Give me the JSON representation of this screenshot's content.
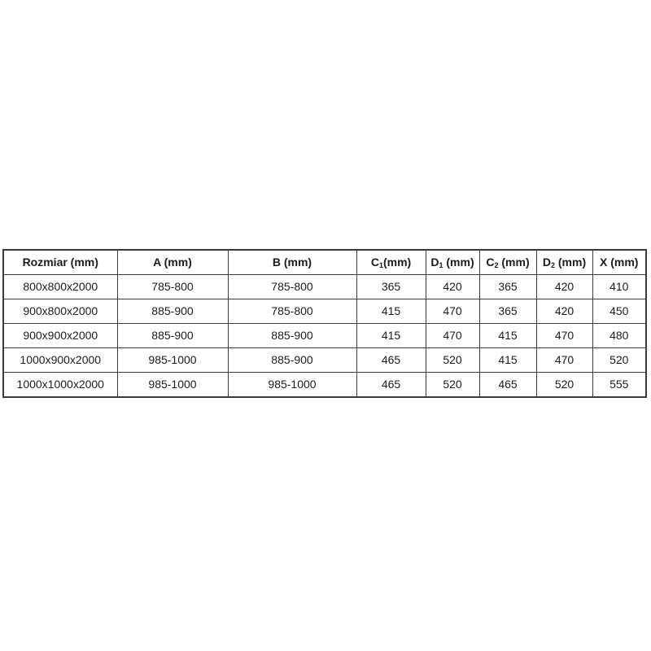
{
  "page": {
    "background_color": "#ffffff"
  },
  "table": {
    "border_color": "#3a3a3a",
    "text_color": "#1c1c1c",
    "columns": [
      {
        "key": "rozmiar",
        "base": "Rozmiar (mm)",
        "sub": "",
        "rest": ""
      },
      {
        "key": "a",
        "base": "A (mm)",
        "sub": "",
        "rest": ""
      },
      {
        "key": "b",
        "base": "B (mm)",
        "sub": "",
        "rest": ""
      },
      {
        "key": "c1",
        "base": "C",
        "sub": "1",
        "rest": "(mm)"
      },
      {
        "key": "d1",
        "base": "D",
        "sub": "1",
        "rest": " (mm)"
      },
      {
        "key": "c2",
        "base": "C",
        "sub": "2",
        "rest": " (mm)"
      },
      {
        "key": "d2",
        "base": "D",
        "sub": "2",
        "rest": " (mm)"
      },
      {
        "key": "x",
        "base": "X (mm)",
        "sub": "",
        "rest": ""
      }
    ]
  },
  "chart_data": {
    "type": "table",
    "title": "",
    "columns": [
      "Rozmiar (mm)",
      "A (mm)",
      "B (mm)",
      "C1(mm)",
      "D1 (mm)",
      "C2 (mm)",
      "D2 (mm)",
      "X (mm)"
    ],
    "rows": [
      [
        "800x800x2000",
        "785-800",
        "785-800",
        "365",
        "420",
        "365",
        "420",
        "410"
      ],
      [
        "900x800x2000",
        "885-900",
        "785-800",
        "415",
        "470",
        "365",
        "420",
        "450"
      ],
      [
        "900x900x2000",
        "885-900",
        "885-900",
        "415",
        "470",
        "415",
        "470",
        "480"
      ],
      [
        "1000x900x2000",
        "985-1000",
        "885-900",
        "465",
        "520",
        "415",
        "470",
        "520"
      ],
      [
        "1000x1000x2000",
        "985-1000",
        "985-1000",
        "465",
        "520",
        "465",
        "520",
        "555"
      ]
    ]
  }
}
